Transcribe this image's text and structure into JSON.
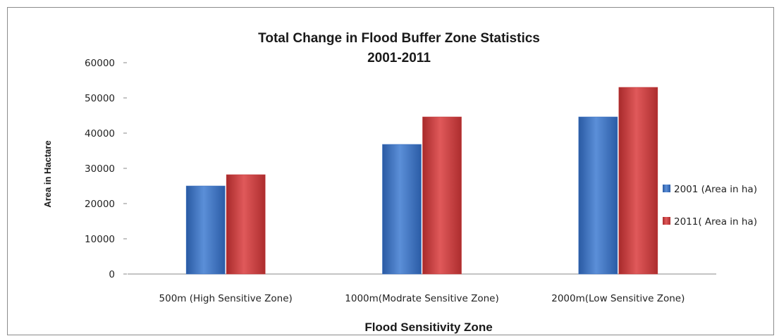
{
  "chart_data": {
    "type": "bar",
    "title": "Total Change in Flood Buffer Zone Statistics",
    "subtitle": "2001-2011",
    "xlabel": "Flood Sensitivity Zone",
    "ylabel": "Area in Hactare",
    "categories": [
      "500m (High Sensitive Zone)",
      "1000m(Modrate Sensitive Zone)",
      "2000m(Low Sensitive Zone)"
    ],
    "series": [
      {
        "name": "2001 (Area in ha)",
        "values": [
          25000,
          36800,
          44600
        ],
        "color": "#3a6fbf"
      },
      {
        "name": "2011( Area in ha)",
        "values": [
          28200,
          44600,
          53000
        ],
        "color": "#c0393a"
      }
    ],
    "ylim": [
      0,
      60000
    ],
    "yticks": [
      "0",
      "10000",
      "20000",
      "30000",
      "40000",
      "50000",
      "60000"
    ],
    "grid": false,
    "legend_position": "right"
  }
}
